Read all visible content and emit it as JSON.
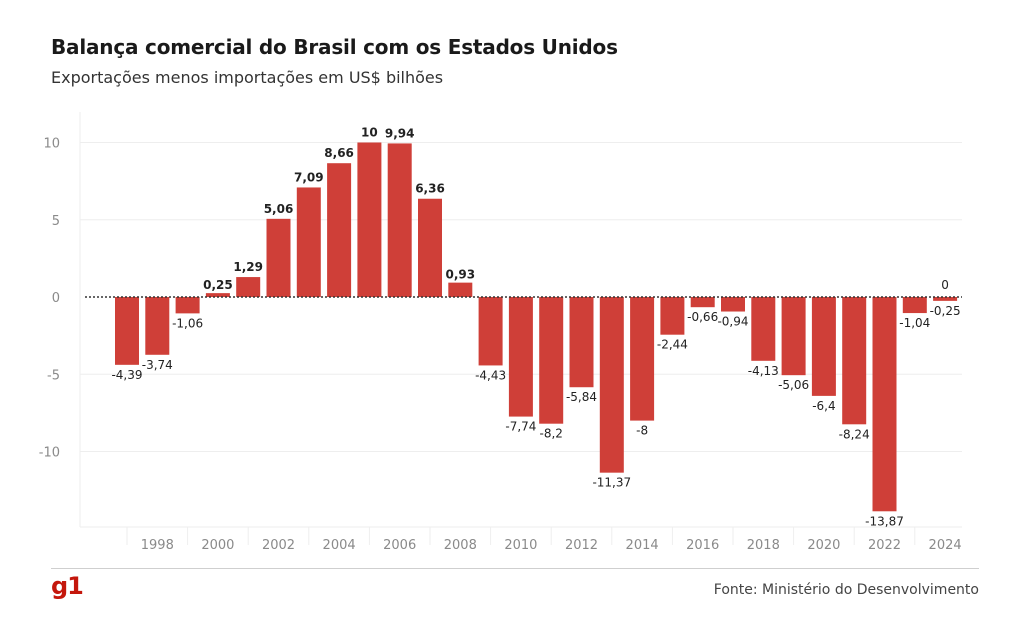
{
  "header": {
    "title": "Balança comercial do Brasil com os Estados Unidos",
    "subtitle": "Exportações menos importações em US$ bilhões"
  },
  "footer": {
    "logo": "g1",
    "source": "Fonte: Ministério do Desenvolvimento"
  },
  "colors": {
    "bar": "#cf3f38",
    "zero_line": "#333333",
    "grid": "#eeeeee",
    "tick_text": "#8a8a8a",
    "brand": "#c4170c"
  },
  "chart_data": {
    "type": "bar",
    "title": "Balança comercial do Brasil com os Estados Unidos",
    "subtitle": "Exportações menos importações em US$ bilhões",
    "xlabel": "",
    "ylabel": "",
    "categories": [
      "1997",
      "1998",
      "1999",
      "2000",
      "2001",
      "2002",
      "2003",
      "2004",
      "2005",
      "2006",
      "2007",
      "2008",
      "2009",
      "2010",
      "2011",
      "2012",
      "2013",
      "2014",
      "2015",
      "2016",
      "2017",
      "2018",
      "2019",
      "2020",
      "2021",
      "2022",
      "2023",
      "2024"
    ],
    "x_tick_labels": [
      "1998",
      "2000",
      "2002",
      "2004",
      "2006",
      "2008",
      "2010",
      "2012",
      "2014",
      "2016",
      "2018",
      "2020",
      "2022",
      "2024"
    ],
    "values": [
      -4.39,
      -3.74,
      -1.06,
      0.25,
      1.29,
      5.06,
      7.09,
      8.66,
      10,
      9.94,
      6.36,
      0.93,
      -4.43,
      -7.74,
      -8.2,
      -5.84,
      -11.37,
      -8,
      -2.44,
      -0.66,
      -0.94,
      -4.13,
      -5.06,
      -6.4,
      -8.24,
      -13.87,
      -1.04,
      -0.25
    ],
    "data_labels": [
      "-4,39",
      "-3,74",
      "-1,06",
      "0,25",
      "1,29",
      "5,06",
      "7,09",
      "8,66",
      "10",
      "9,94",
      "6,36",
      "0,93",
      "-4,43",
      "-7,74",
      "-8,2",
      "-5,84",
      "-11,37",
      "-8",
      "-2,44",
      "-0,66",
      "-0,94",
      "-4,13",
      "-5,06",
      "-6,4",
      "-8,24",
      "-13,87",
      "-1,04",
      "-0,25"
    ],
    "extra_label": {
      "x": "2024",
      "value": 0,
      "text": "0"
    },
    "y_ticks": [
      10,
      5,
      0,
      -5,
      -10
    ],
    "ylim": [
      -15,
      10.5
    ],
    "grid": true,
    "legend": "none"
  }
}
